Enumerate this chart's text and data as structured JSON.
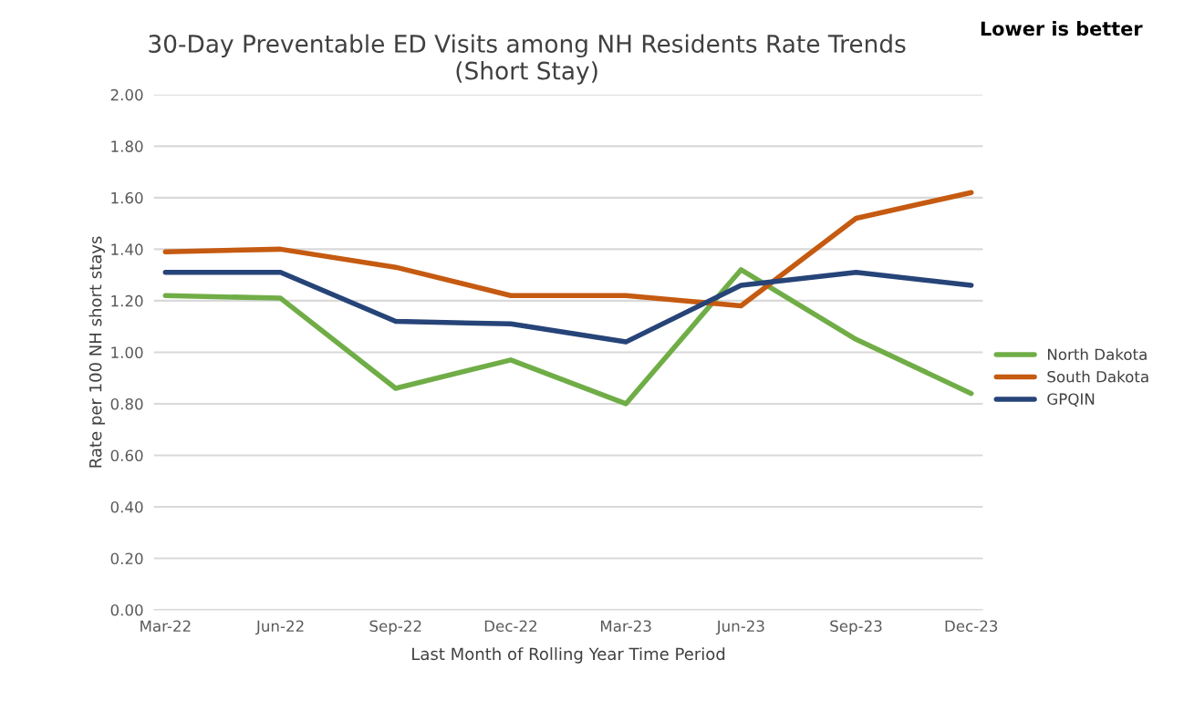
{
  "chart_data": {
    "type": "line",
    "title": "30-Day Preventable ED Visits among NH Residents Rate Trends\n(Short Stay)",
    "xlabel": "Last Month of Rolling Year Time Period",
    "ylabel": "Rate per 100 NH short stays",
    "annotations": [
      "Lower is better"
    ],
    "categories": [
      "Mar-22",
      "Jun-22",
      "Sep-22",
      "Dec-22",
      "Mar-23",
      "Jun-23",
      "Sep-23",
      "Dec-23"
    ],
    "series": [
      {
        "name": "North Dakota",
        "color": "#70ad47",
        "values": [
          1.22,
          1.21,
          0.86,
          0.97,
          0.8,
          1.32,
          1.05,
          0.84
        ]
      },
      {
        "name": "South Dakota",
        "color": "#c55a11",
        "values": [
          1.39,
          1.4,
          1.33,
          1.22,
          1.22,
          1.18,
          1.52,
          1.62
        ]
      },
      {
        "name": "GPQIN",
        "color": "#264478",
        "values": [
          1.31,
          1.31,
          1.12,
          1.11,
          1.04,
          1.26,
          1.31,
          1.26
        ]
      }
    ],
    "ylim": [
      0,
      2
    ],
    "yticks": [
      {
        "value": 0,
        "label": "0.00"
      },
      {
        "value": 0.2,
        "label": "0.20"
      },
      {
        "value": 0.4,
        "label": "0.40"
      },
      {
        "value": 0.6,
        "label": "0.60"
      },
      {
        "value": 0.8,
        "label": "0.80"
      },
      {
        "value": 1.0,
        "label": "1.00"
      },
      {
        "value": 1.2,
        "label": "1.20"
      },
      {
        "value": 1.4,
        "label": "1.40"
      },
      {
        "value": 1.6,
        "label": "1.60"
      },
      {
        "value": 1.8,
        "label": "1.80"
      },
      {
        "value": 2.0,
        "label": "2.00"
      }
    ],
    "grid": "y",
    "legend": "right",
    "marker": "none",
    "line_style": "solid"
  }
}
